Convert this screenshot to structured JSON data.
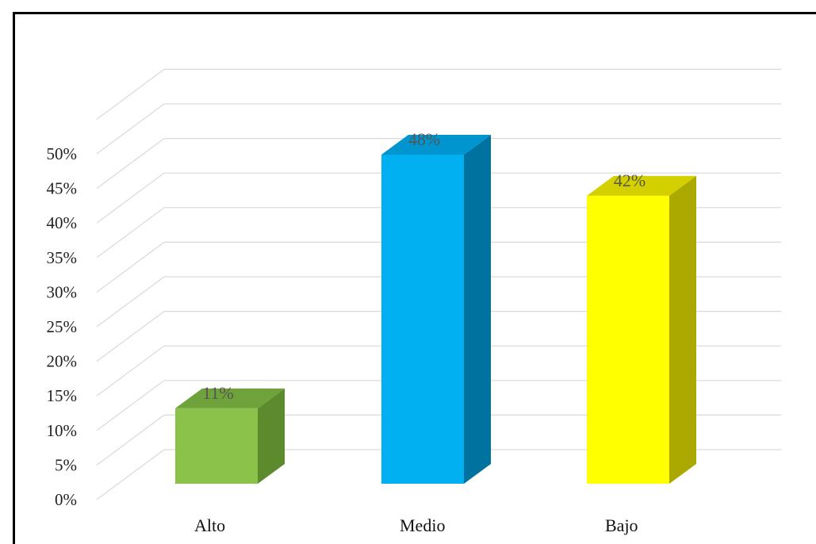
{
  "chart_data": {
    "type": "bar",
    "categories": [
      "Alto",
      "Medio",
      "Bajo"
    ],
    "values": [
      11,
      48,
      42
    ],
    "value_labels": [
      "11%",
      "48%",
      "42%"
    ],
    "ylim": [
      0,
      50
    ],
    "ytick_values": [
      0,
      5,
      10,
      15,
      20,
      25,
      30,
      35,
      40,
      45,
      50
    ],
    "ytick_labels": [
      "0%",
      "5%",
      "10%",
      "15%",
      "20%",
      "25%",
      "30%",
      "35%",
      "40%",
      "45%",
      "50%"
    ],
    "title": "",
    "xlabel": "",
    "ylabel": "",
    "grid": true,
    "style": "3d-column",
    "colors": {
      "bars": [
        "#8BC34A",
        "#00B0F0",
        "#FFFF00"
      ],
      "bar_sides": [
        "#5E8A2E",
        "#0072A0",
        "#ABA800"
      ],
      "bar_tops": [
        "#6FA23A",
        "#0095CF",
        "#D4D000"
      ],
      "grid": "#D9D9D9"
    }
  }
}
